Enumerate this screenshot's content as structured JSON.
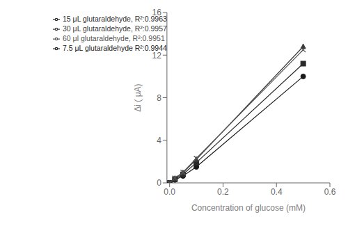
{
  "chart_data": {
    "type": "line",
    "xlabel": "Concentration of glucose (mM)",
    "ylabel": "Δi ( μA)",
    "x": [
      0,
      0.02,
      0.05,
      0.1,
      0.5
    ],
    "series": [
      {
        "name": "7.5 μL glutaraldehyde R²:0.9944",
        "color": "#1a1a1a",
        "marker": "circle",
        "values": [
          0,
          0.28,
          0.65,
          1.5,
          10.0
        ]
      },
      {
        "name": "15 μL glutaraldehyde, R²:0.9963",
        "color": "#2a2a2a",
        "marker": "square",
        "values": [
          0,
          0.35,
          0.8,
          1.9,
          11.2
        ]
      },
      {
        "name": "30 μL glutaraldehyde, R²:0.9957",
        "color": "#3a3a3a",
        "marker": "triangle",
        "values": [
          0,
          0.42,
          0.95,
          2.2,
          12.8
        ]
      },
      {
        "name": "60 μl glutaraldehyde, R²:0.9951",
        "color": "#555555",
        "marker": "cross",
        "values": [
          0,
          0.45,
          1.0,
          2.3,
          12.5
        ]
      }
    ],
    "xlim": [
      -0.01,
      0.6
    ],
    "ylim": [
      0,
      16
    ],
    "xticks": [
      {
        "value": 0,
        "label": "0.0"
      },
      0.2,
      0.4,
      0.6
    ],
    "yticks": [
      0,
      4,
      8,
      12,
      16
    ],
    "legend": "upper left",
    "grid": false
  }
}
